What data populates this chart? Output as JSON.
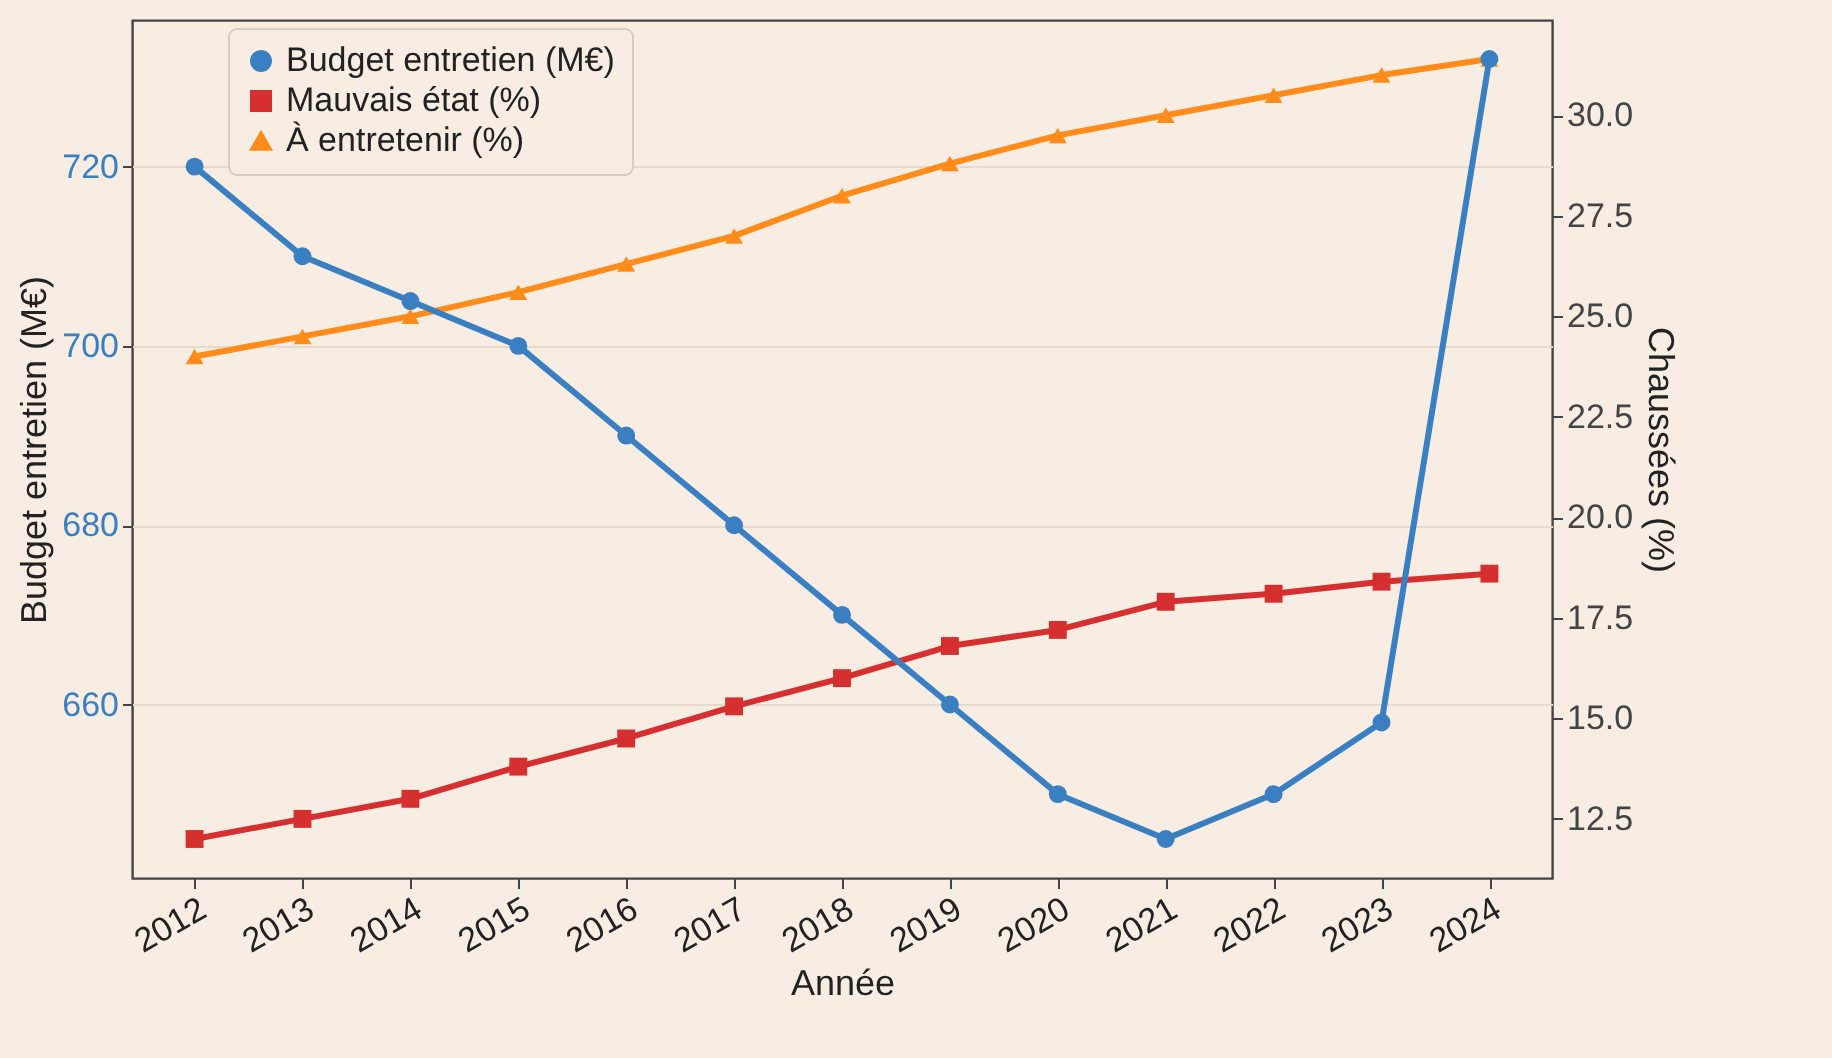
{
  "chart_data": {
    "type": "line",
    "categories": [
      "2012",
      "2013",
      "2014",
      "2015",
      "2016",
      "2017",
      "2018",
      "2019",
      "2020",
      "2021",
      "2022",
      "2023",
      "2024"
    ],
    "xlabel": "Année",
    "ylabel": "Budget entretien (M€)",
    "y2label": "Chaussées (%)",
    "ylim": [
      640.65,
      736.35
    ],
    "yticks": [
      660,
      680,
      700,
      720
    ],
    "y2lim": [
      11.03,
      32.37
    ],
    "y2ticks": [
      {
        "value": 12.5,
        "label": "12.5"
      },
      {
        "value": 15,
        "label": "15.0"
      },
      {
        "value": 17.5,
        "label": "17.5"
      },
      {
        "value": 20,
        "label": "20.0"
      },
      {
        "value": 22.5,
        "label": "22.5"
      },
      {
        "value": 25,
        "label": "25.0"
      },
      {
        "value": 27.5,
        "label": "27.5"
      },
      {
        "value": 30,
        "label": "30.0"
      }
    ],
    "grid": "y",
    "legend": "top left",
    "line_style": "solid",
    "series": [
      {
        "name": "Budget entretien (M€)",
        "color": "#3a7fc1",
        "marker": "circle",
        "values": [
          720,
          710,
          705,
          700,
          690,
          680,
          670,
          660,
          650,
          645,
          650,
          658,
          732
        ]
      },
      {
        "name": "Mauvais état (%)",
        "color": "#d62f2f",
        "marker": "square",
        "axis": "y2",
        "values": [
          12.0,
          12.5,
          13.0,
          13.8,
          14.5,
          15.3,
          16.0,
          16.8,
          17.2,
          17.9,
          18.1,
          18.4,
          18.6
        ]
      },
      {
        "name": "À entretenir (%)",
        "color": "#ff8c1a",
        "marker": "triangle",
        "axis": "y2",
        "values": [
          24.0,
          24.5,
          25.0,
          25.6,
          26.3,
          27.0,
          28.0,
          28.8,
          29.5,
          30.0,
          30.5,
          31.0,
          31.4
        ]
      }
    ]
  }
}
